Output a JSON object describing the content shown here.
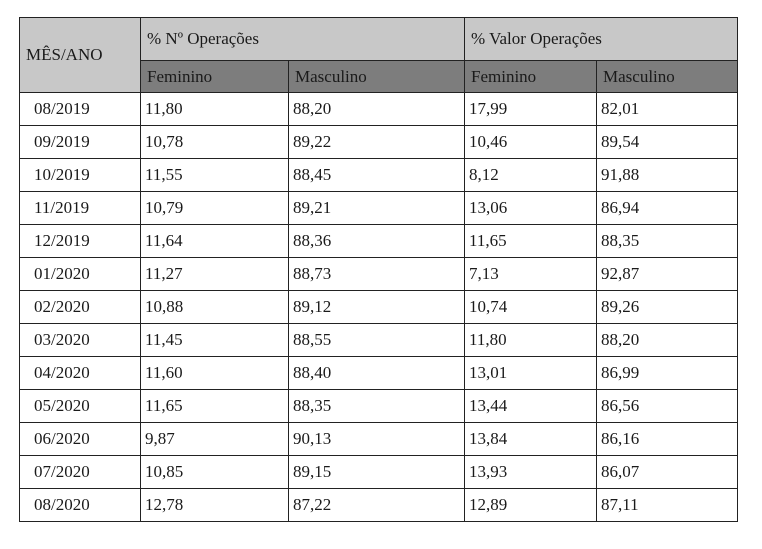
{
  "table": {
    "header": {
      "month_label": "MÊS/ANO",
      "group1": "% Nº Operações",
      "group2": "%  Valor Operações",
      "subheaders": [
        "Feminino",
        "Masculino",
        "Feminino",
        "Masculino"
      ]
    },
    "rows": [
      [
        "08/2019",
        "11,80",
        "88,20",
        "17,99",
        "82,01"
      ],
      [
        "09/2019",
        "10,78",
        "89,22",
        "10,46",
        "89,54"
      ],
      [
        "10/2019",
        "11,55",
        "88,45",
        "8,12",
        "91,88"
      ],
      [
        "11/2019",
        "10,79",
        "89,21",
        "13,06",
        "86,94"
      ],
      [
        "12/2019",
        "11,64",
        "88,36",
        "11,65",
        "88,35"
      ],
      [
        "01/2020",
        "11,27",
        "88,73",
        "7,13",
        "92,87"
      ],
      [
        "02/2020",
        "10,88",
        "89,12",
        "10,74",
        "89,26"
      ],
      [
        "03/2020",
        "11,45",
        "88,55",
        "11,80",
        "88,20"
      ],
      [
        "04/2020",
        "11,60",
        "88,40",
        "13,01",
        "86,99"
      ],
      [
        "05/2020",
        "11,65",
        "88,35",
        "13,44",
        "86,56"
      ],
      [
        "06/2020",
        "9,87",
        "90,13",
        "13,84",
        "86,16"
      ],
      [
        "07/2020",
        "10,85",
        "89,15",
        "13,93",
        "86,07"
      ],
      [
        "08/2020",
        "12,78",
        "87,22",
        "12,89",
        "87,11"
      ]
    ]
  }
}
